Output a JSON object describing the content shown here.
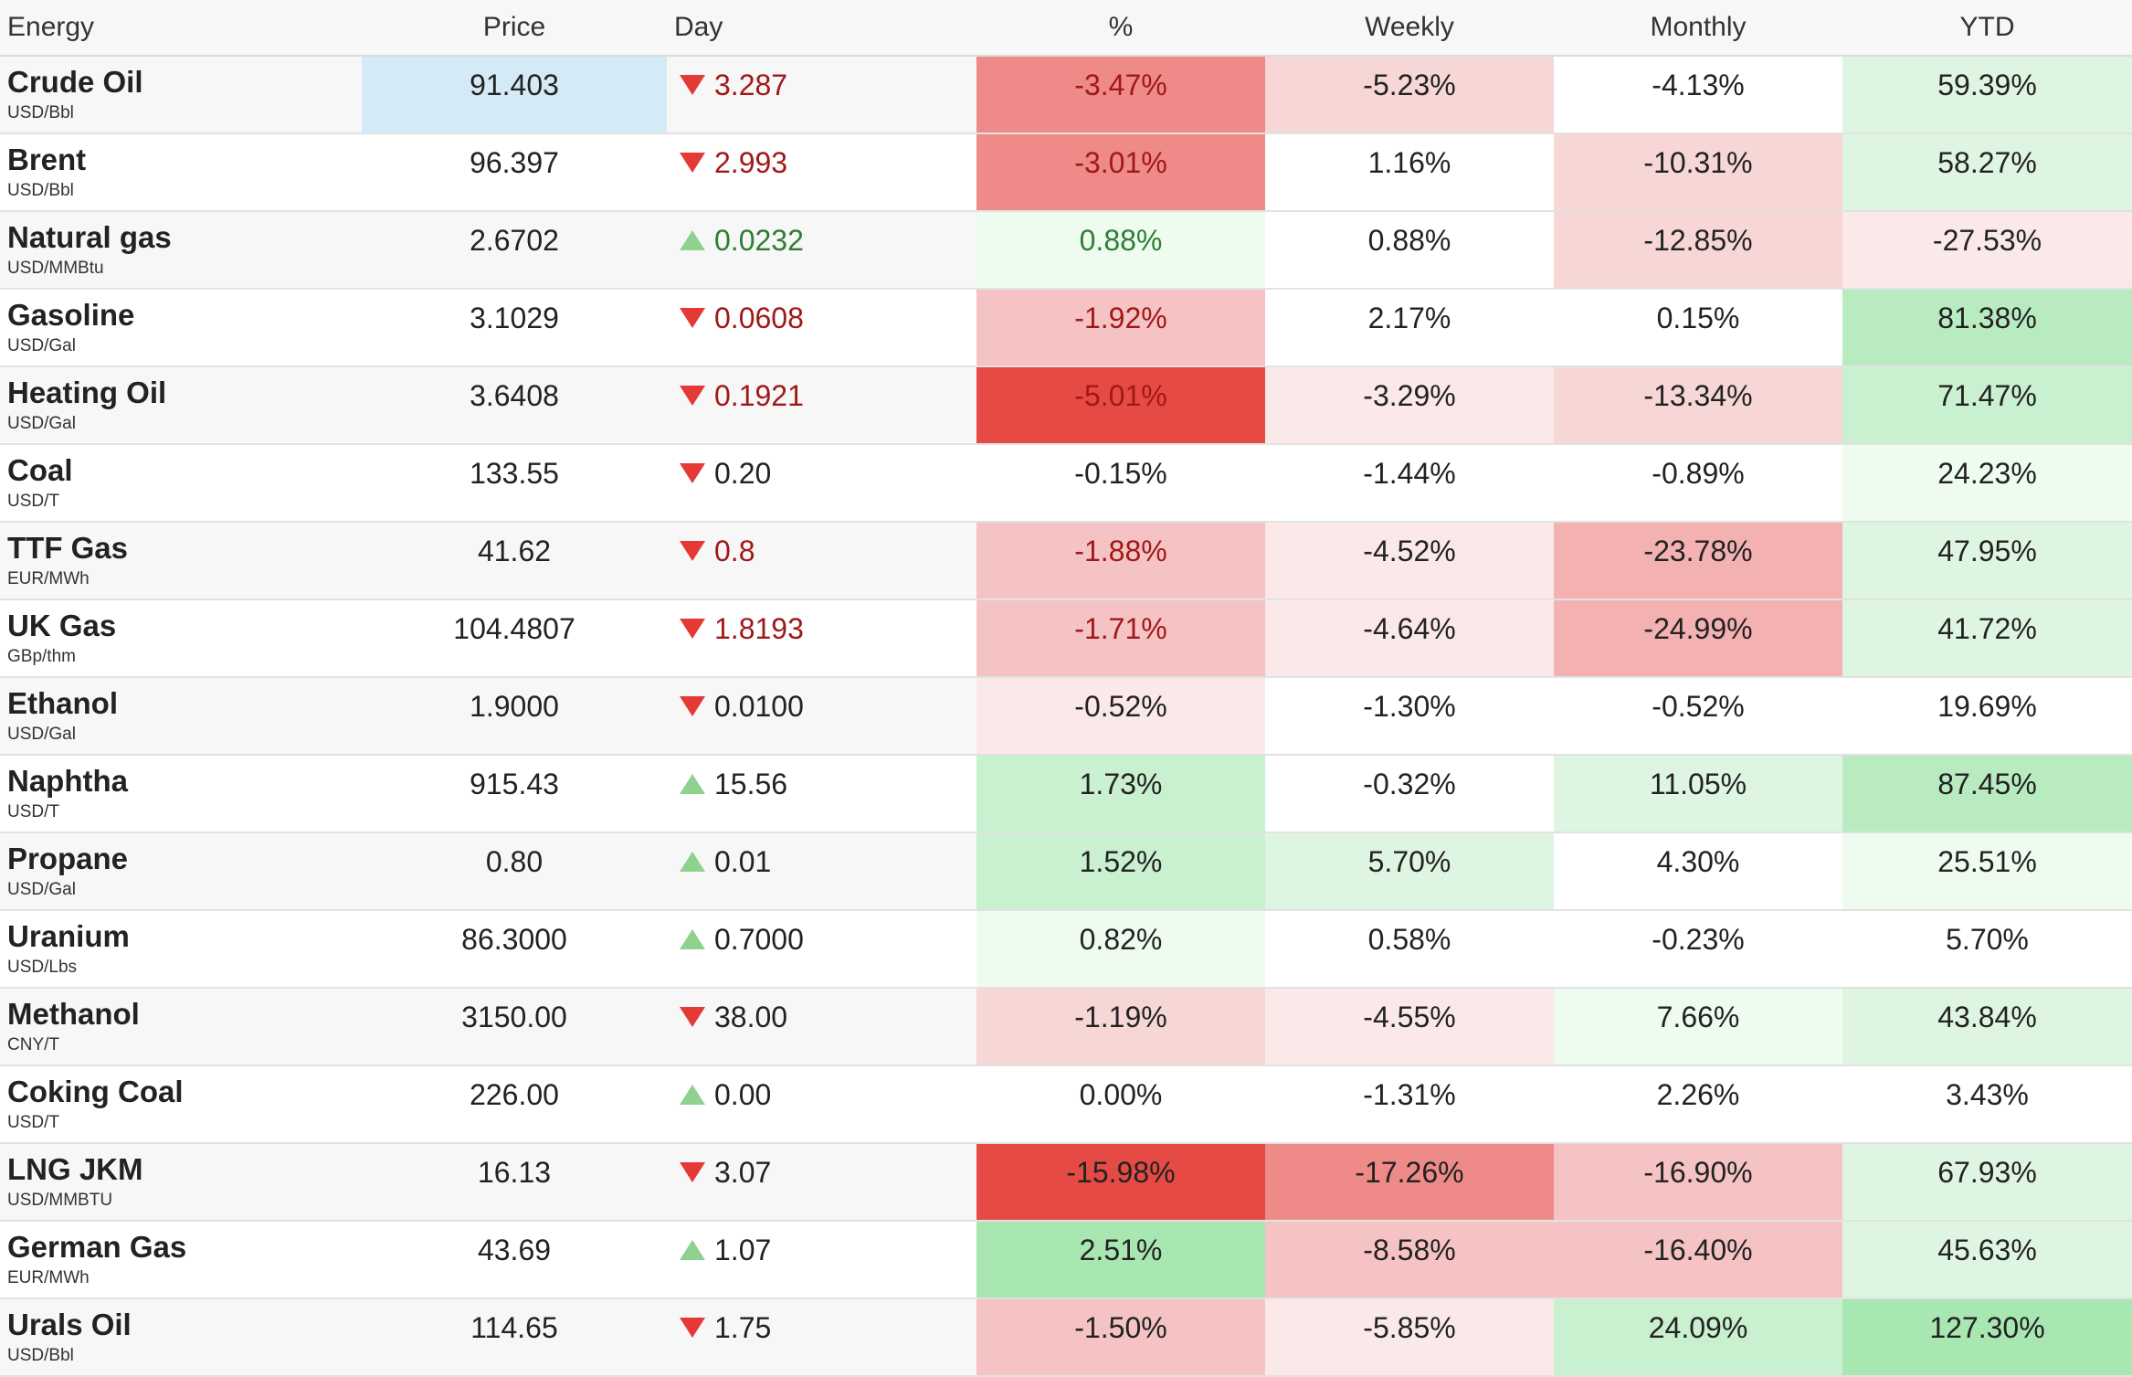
{
  "headers": {
    "energy": "Energy",
    "price": "Price",
    "day": "Day",
    "pct": "%",
    "weekly": "Weekly",
    "monthly": "Monthly",
    "ytd": "YTD"
  },
  "colors": {
    "red_strong": "#e64a45",
    "red_mid": "#ee8a88",
    "red_light": "#f5c3c3",
    "red_pale": "#fbe9e9",
    "green_strong": "#a8e6b2",
    "green_mid": "#c9f0cf",
    "green_light": "#def5e2",
    "green_pale": "#eefbef",
    "highlight": "#d5eaf7",
    "neutral": "#ffffff"
  },
  "rows": [
    {
      "name": "Crude Oil",
      "unit": "USD/Bbl",
      "price": "91.403",
      "highlight": true,
      "dir": "down",
      "day": "3.287",
      "day_color": "red",
      "pct": "-3.47%",
      "pct_bg": "#ee8a88",
      "pct_color": "red",
      "weekly": "-5.23%",
      "weekly_bg": "#f7d6d6",
      "monthly": "-4.13%",
      "monthly_bg": "#ffffff",
      "ytd": "59.39%",
      "ytd_bg": "#def5e2"
    },
    {
      "name": "Brent",
      "unit": "USD/Bbl",
      "price": "96.397",
      "highlight": false,
      "dir": "down",
      "day": "2.993",
      "day_color": "red",
      "pct": "-3.01%",
      "pct_bg": "#ee8a88",
      "pct_color": "red",
      "weekly": "1.16%",
      "weekly_bg": "#ffffff",
      "monthly": "-10.31%",
      "monthly_bg": "#f7d6d6",
      "ytd": "58.27%",
      "ytd_bg": "#def5e2"
    },
    {
      "name": "Natural gas",
      "unit": "USD/MMBtu",
      "price": "2.6702",
      "highlight": false,
      "dir": "up",
      "day": "0.0232",
      "day_color": "green",
      "pct": "0.88%",
      "pct_bg": "#eefbef",
      "pct_color": "green",
      "weekly": "0.88%",
      "weekly_bg": "#ffffff",
      "monthly": "-12.85%",
      "monthly_bg": "#f7d6d6",
      "ytd": "-27.53%",
      "ytd_bg": "#fbe9e9"
    },
    {
      "name": "Gasoline",
      "unit": "USD/Gal",
      "price": "3.1029",
      "highlight": false,
      "dir": "down",
      "day": "0.0608",
      "day_color": "red",
      "pct": "-1.92%",
      "pct_bg": "#f5c3c3",
      "pct_color": "red",
      "weekly": "2.17%",
      "weekly_bg": "#ffffff",
      "monthly": "0.15%",
      "monthly_bg": "#ffffff",
      "ytd": "81.38%",
      "ytd_bg": "#b8ebc0"
    },
    {
      "name": "Heating Oil",
      "unit": "USD/Gal",
      "price": "3.6408",
      "highlight": false,
      "dir": "down",
      "day": "0.1921",
      "day_color": "red",
      "pct": "-5.01%",
      "pct_bg": "#e64a45",
      "pct_color": "red",
      "weekly": "-3.29%",
      "weekly_bg": "#fbe9e9",
      "monthly": "-13.34%",
      "monthly_bg": "#f7d6d6",
      "ytd": "71.47%",
      "ytd_bg": "#c9f0cf"
    },
    {
      "name": "Coal",
      "unit": "USD/T",
      "price": "133.55",
      "highlight": false,
      "dir": "down",
      "day": "0.20",
      "day_color": "black",
      "pct": "-0.15%",
      "pct_bg": "#ffffff",
      "pct_color": "black",
      "weekly": "-1.44%",
      "weekly_bg": "#ffffff",
      "monthly": "-0.89%",
      "monthly_bg": "#ffffff",
      "ytd": "24.23%",
      "ytd_bg": "#eefbef"
    },
    {
      "name": "TTF Gas",
      "unit": "EUR/MWh",
      "price": "41.62",
      "highlight": false,
      "dir": "down",
      "day": "0.8",
      "day_color": "red",
      "pct": "-1.88%",
      "pct_bg": "#f5c3c3",
      "pct_color": "red",
      "weekly": "-4.52%",
      "weekly_bg": "#fbe9e9",
      "monthly": "-23.78%",
      "monthly_bg": "#f3b1b1",
      "ytd": "47.95%",
      "ytd_bg": "#def5e2"
    },
    {
      "name": "UK Gas",
      "unit": "GBp/thm",
      "price": "104.4807",
      "highlight": false,
      "dir": "down",
      "day": "1.8193",
      "day_color": "red",
      "pct": "-1.71%",
      "pct_bg": "#f5c3c3",
      "pct_color": "red",
      "weekly": "-4.64%",
      "weekly_bg": "#fbe9e9",
      "monthly": "-24.99%",
      "monthly_bg": "#f3b1b1",
      "ytd": "41.72%",
      "ytd_bg": "#def5e2"
    },
    {
      "name": "Ethanol",
      "unit": "USD/Gal",
      "price": "1.9000",
      "highlight": false,
      "dir": "down",
      "day": "0.0100",
      "day_color": "black",
      "pct": "-0.52%",
      "pct_bg": "#fbe9e9",
      "pct_color": "black",
      "weekly": "-1.30%",
      "weekly_bg": "#ffffff",
      "monthly": "-0.52%",
      "monthly_bg": "#ffffff",
      "ytd": "19.69%",
      "ytd_bg": "#ffffff"
    },
    {
      "name": "Naphtha",
      "unit": "USD/T",
      "price": "915.43",
      "highlight": false,
      "dir": "up",
      "day": "15.56",
      "day_color": "black",
      "pct": "1.73%",
      "pct_bg": "#c9f0cf",
      "pct_color": "black",
      "weekly": "-0.32%",
      "weekly_bg": "#ffffff",
      "monthly": "11.05%",
      "monthly_bg": "#def5e2",
      "ytd": "87.45%",
      "ytd_bg": "#b8ebc0"
    },
    {
      "name": "Propane",
      "unit": "USD/Gal",
      "price": "0.80",
      "highlight": false,
      "dir": "up",
      "day": "0.01",
      "day_color": "black",
      "pct": "1.52%",
      "pct_bg": "#c9f0cf",
      "pct_color": "black",
      "weekly": "5.70%",
      "weekly_bg": "#def5e2",
      "monthly": "4.30%",
      "monthly_bg": "#ffffff",
      "ytd": "25.51%",
      "ytd_bg": "#eefbef"
    },
    {
      "name": "Uranium",
      "unit": "USD/Lbs",
      "price": "86.3000",
      "highlight": false,
      "dir": "up",
      "day": "0.7000",
      "day_color": "black",
      "pct": "0.82%",
      "pct_bg": "#eefbef",
      "pct_color": "black",
      "weekly": "0.58%",
      "weekly_bg": "#ffffff",
      "monthly": "-0.23%",
      "monthly_bg": "#ffffff",
      "ytd": "5.70%",
      "ytd_bg": "#ffffff"
    },
    {
      "name": "Methanol",
      "unit": "CNY/T",
      "price": "3150.00",
      "highlight": false,
      "dir": "down",
      "day": "38.00",
      "day_color": "black",
      "pct": "-1.19%",
      "pct_bg": "#f7d6d6",
      "pct_color": "black",
      "weekly": "-4.55%",
      "weekly_bg": "#fbe9e9",
      "monthly": "7.66%",
      "monthly_bg": "#eefbef",
      "ytd": "43.84%",
      "ytd_bg": "#def5e2"
    },
    {
      "name": "Coking Coal",
      "unit": "USD/T",
      "price": "226.00",
      "highlight": false,
      "dir": "up",
      "day": "0.00",
      "day_color": "black",
      "pct": "0.00%",
      "pct_bg": "#ffffff",
      "pct_color": "black",
      "weekly": "-1.31%",
      "weekly_bg": "#ffffff",
      "monthly": "2.26%",
      "monthly_bg": "#ffffff",
      "ytd": "3.43%",
      "ytd_bg": "#ffffff"
    },
    {
      "name": "LNG JKM",
      "unit": "USD/MMBTU",
      "price": "16.13",
      "highlight": false,
      "dir": "down",
      "day": "3.07",
      "day_color": "black",
      "pct": "-15.98%",
      "pct_bg": "#e64a45",
      "pct_color": "black",
      "weekly": "-17.26%",
      "weekly_bg": "#ee8a88",
      "monthly": "-16.90%",
      "monthly_bg": "#f5c3c3",
      "ytd": "67.93%",
      "ytd_bg": "#def5e2"
    },
    {
      "name": "German Gas",
      "unit": "EUR/MWh",
      "price": "43.69",
      "highlight": false,
      "dir": "up",
      "day": "1.07",
      "day_color": "black",
      "pct": "2.51%",
      "pct_bg": "#a8e6b2",
      "pct_color": "black",
      "weekly": "-8.58%",
      "weekly_bg": "#f5c3c3",
      "monthly": "-16.40%",
      "monthly_bg": "#f5c3c3",
      "ytd": "45.63%",
      "ytd_bg": "#def5e2"
    },
    {
      "name": "Urals Oil",
      "unit": "USD/Bbl",
      "price": "114.65",
      "highlight": false,
      "dir": "down",
      "day": "1.75",
      "day_color": "black",
      "pct": "-1.50%",
      "pct_bg": "#f5c3c3",
      "pct_color": "black",
      "weekly": "-5.85%",
      "weekly_bg": "#fbe9e9",
      "monthly": "24.09%",
      "monthly_bg": "#c9f0cf",
      "ytd": "127.30%",
      "ytd_bg": "#a8e6b2"
    }
  ]
}
